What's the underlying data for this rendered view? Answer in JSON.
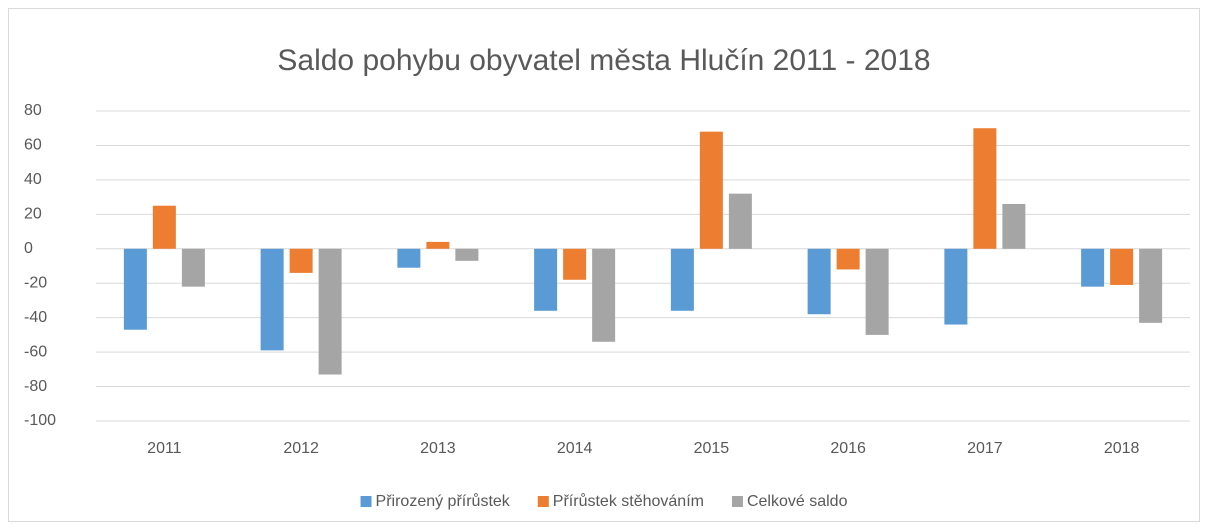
{
  "chart_data": {
    "type": "bar",
    "title": "Saldo pohybu obyvatel města Hlučín 2011 - 2018",
    "categories": [
      "2011",
      "2012",
      "2013",
      "2014",
      "2015",
      "2016",
      "2017",
      "2018"
    ],
    "series": [
      {
        "name": "Přirozený přírůstek",
        "color": "#5b9bd5",
        "values": [
          -47,
          -59,
          -11,
          -36,
          -36,
          -38,
          -44,
          -22
        ]
      },
      {
        "name": "Přírůstek stěhováním",
        "color": "#ed7d31",
        "values": [
          25,
          -14,
          4,
          -18,
          68,
          -12,
          70,
          -21
        ]
      },
      {
        "name": "Celkové saldo",
        "color": "#a5a5a5",
        "values": [
          -22,
          -73,
          -7,
          -54,
          32,
          -50,
          26,
          -43
        ]
      }
    ],
    "ylim": [
      -100,
      80
    ],
    "yticks": [
      -100,
      -80,
      -60,
      -40,
      -20,
      0,
      20,
      40,
      60,
      80
    ],
    "grid": true,
    "legend": "bottom"
  }
}
